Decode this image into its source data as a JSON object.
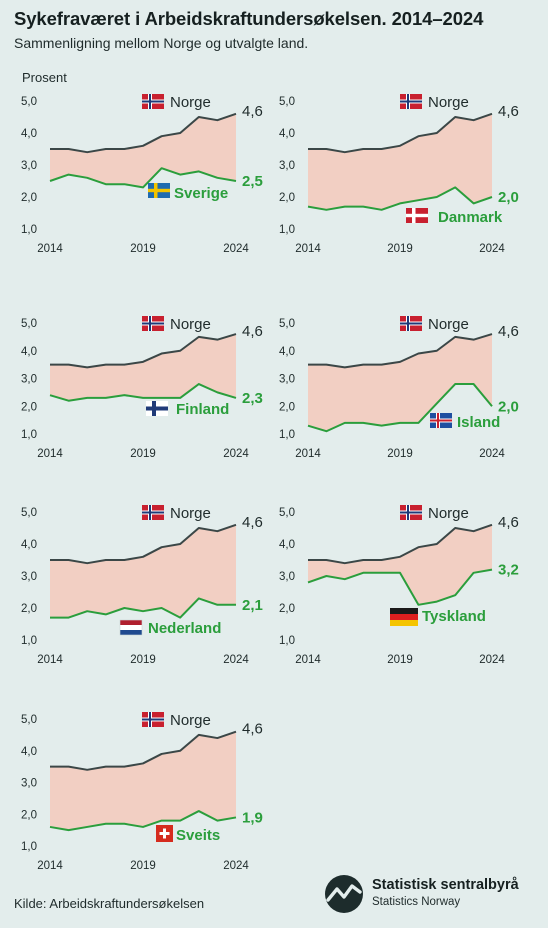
{
  "header": {
    "title": "Sykefraværet i Arbeidskraftundersøkelsen. 2014–2024",
    "subtitle": "Sammenligning mellom Norge og utvalgte land.",
    "unit_label": "Prosent"
  },
  "footer": {
    "source": "Kilde: Arbeidskraftundersøkelsen",
    "logo_name": "Statistisk sentralbyrå",
    "logo_sub": "Statistics Norway"
  },
  "colors": {
    "background": "#e3edec",
    "norway_line": "#3b4747",
    "compare_line": "#2b9e3c",
    "gap_fill": "#f2cfc3"
  },
  "chart_data": [
    {
      "type": "line",
      "x": [
        2014,
        2015,
        2016,
        2017,
        2018,
        2019,
        2020,
        2021,
        2022,
        2023,
        2024
      ],
      "y_ticks": [
        "5,0",
        "4,0",
        "3,0",
        "2,0",
        "1,0"
      ],
      "x_ticks": [
        "2014",
        "2019",
        "2024"
      ],
      "ylim": [
        1,
        5
      ],
      "series": [
        {
          "name": "Norge",
          "values": [
            3.5,
            3.5,
            3.4,
            3.5,
            3.5,
            3.6,
            3.9,
            4.0,
            4.5,
            4.4,
            4.6
          ],
          "last_label": "4,6",
          "flag": "norway-flag"
        },
        {
          "name": "Sverige",
          "values": [
            2.5,
            2.7,
            2.6,
            2.4,
            2.4,
            2.3,
            2.9,
            2.7,
            2.8,
            2.6,
            2.5
          ],
          "last_label": "2,5",
          "flag": "sweden-flag"
        }
      ]
    },
    {
      "type": "line",
      "x": [
        2014,
        2015,
        2016,
        2017,
        2018,
        2019,
        2020,
        2021,
        2022,
        2023,
        2024
      ],
      "y_ticks": [
        "5,0",
        "4,0",
        "3,0",
        "2,0",
        "1,0"
      ],
      "x_ticks": [
        "2014",
        "2019",
        "2024"
      ],
      "ylim": [
        1,
        5
      ],
      "series": [
        {
          "name": "Norge",
          "values": [
            3.5,
            3.5,
            3.4,
            3.5,
            3.5,
            3.6,
            3.9,
            4.0,
            4.5,
            4.4,
            4.6
          ],
          "last_label": "4,6",
          "flag": "norway-flag"
        },
        {
          "name": "Danmark",
          "values": [
            1.7,
            1.6,
            1.7,
            1.7,
            1.6,
            1.8,
            1.9,
            2.0,
            2.3,
            1.8,
            2.0
          ],
          "last_label": "2,0",
          "flag": "denmark-flag"
        }
      ]
    },
    {
      "type": "line",
      "x": [
        2014,
        2015,
        2016,
        2017,
        2018,
        2019,
        2020,
        2021,
        2022,
        2023,
        2024
      ],
      "y_ticks": [
        "5,0",
        "4,0",
        "3,0",
        "2,0",
        "1,0"
      ],
      "x_ticks": [
        "2014",
        "2019",
        "2024"
      ],
      "ylim": [
        1,
        5
      ],
      "series": [
        {
          "name": "Norge",
          "values": [
            3.5,
            3.5,
            3.4,
            3.5,
            3.5,
            3.6,
            3.9,
            4.0,
            4.5,
            4.4,
            4.6
          ],
          "last_label": "4,6",
          "flag": "norway-flag"
        },
        {
          "name": "Finland",
          "values": [
            2.4,
            2.2,
            2.3,
            2.3,
            2.4,
            2.3,
            2.3,
            2.3,
            2.8,
            2.5,
            2.3
          ],
          "last_label": "2,3",
          "flag": "finland-flag"
        }
      ]
    },
    {
      "type": "line",
      "x": [
        2014,
        2015,
        2016,
        2017,
        2018,
        2019,
        2020,
        2021,
        2022,
        2023,
        2024
      ],
      "y_ticks": [
        "5,0",
        "4,0",
        "3,0",
        "2,0",
        "1,0"
      ],
      "x_ticks": [
        "2014",
        "2019",
        "2024"
      ],
      "ylim": [
        1,
        5
      ],
      "series": [
        {
          "name": "Norge",
          "values": [
            3.5,
            3.5,
            3.4,
            3.5,
            3.5,
            3.6,
            3.9,
            4.0,
            4.5,
            4.4,
            4.6
          ],
          "last_label": "4,6",
          "flag": "norway-flag"
        },
        {
          "name": "Island",
          "values": [
            1.3,
            1.1,
            1.4,
            1.4,
            1.3,
            1.4,
            1.4,
            2.1,
            2.8,
            2.8,
            2.0
          ],
          "last_label": "2,0",
          "flag": "iceland-flag"
        }
      ]
    },
    {
      "type": "line",
      "x": [
        2014,
        2015,
        2016,
        2017,
        2018,
        2019,
        2020,
        2021,
        2022,
        2023,
        2024
      ],
      "y_ticks": [
        "5,0",
        "4,0",
        "3,0",
        "2,0",
        "1,0"
      ],
      "x_ticks": [
        "2014",
        "2019",
        "2024"
      ],
      "ylim": [
        1,
        5
      ],
      "series": [
        {
          "name": "Norge",
          "values": [
            3.5,
            3.5,
            3.4,
            3.5,
            3.5,
            3.6,
            3.9,
            4.0,
            4.5,
            4.4,
            4.6
          ],
          "last_label": "4,6",
          "flag": "norway-flag"
        },
        {
          "name": "Nederland",
          "values": [
            1.7,
            1.7,
            1.9,
            1.8,
            2.0,
            1.9,
            2.0,
            1.7,
            2.3,
            2.1,
            2.1
          ],
          "last_label": "2,1",
          "flag": "netherlands-flag"
        }
      ]
    },
    {
      "type": "line",
      "x": [
        2014,
        2015,
        2016,
        2017,
        2018,
        2019,
        2020,
        2021,
        2022,
        2023,
        2024
      ],
      "y_ticks": [
        "5,0",
        "4,0",
        "3,0",
        "2,0",
        "1,0"
      ],
      "x_ticks": [
        "2014",
        "2019",
        "2024"
      ],
      "ylim": [
        1,
        5
      ],
      "series": [
        {
          "name": "Norge",
          "values": [
            3.5,
            3.5,
            3.4,
            3.5,
            3.5,
            3.6,
            3.9,
            4.0,
            4.5,
            4.4,
            4.6
          ],
          "last_label": "4,6",
          "flag": "norway-flag"
        },
        {
          "name": "Tyskland",
          "values": [
            2.8,
            3.0,
            2.9,
            3.1,
            3.1,
            3.1,
            2.1,
            2.2,
            2.4,
            3.1,
            3.2
          ],
          "last_label": "3,2",
          "flag": "germany-flag"
        }
      ]
    },
    {
      "type": "line",
      "x": [
        2014,
        2015,
        2016,
        2017,
        2018,
        2019,
        2020,
        2021,
        2022,
        2023,
        2024
      ],
      "y_ticks": [
        "5,0",
        "4,0",
        "3,0",
        "2,0",
        "1,0"
      ],
      "x_ticks": [
        "2014",
        "2019",
        "2024"
      ],
      "ylim": [
        1,
        5
      ],
      "series": [
        {
          "name": "Norge",
          "values": [
            3.5,
            3.5,
            3.4,
            3.5,
            3.5,
            3.6,
            3.9,
            4.0,
            4.5,
            4.4,
            4.6
          ],
          "last_label": "4,6",
          "flag": "norway-flag"
        },
        {
          "name": "Sveits",
          "values": [
            1.6,
            1.5,
            1.6,
            1.7,
            1.7,
            1.6,
            1.8,
            1.8,
            2.1,
            1.8,
            1.9
          ],
          "last_label": "1,9",
          "flag": "switzerland-flag"
        }
      ]
    }
  ]
}
